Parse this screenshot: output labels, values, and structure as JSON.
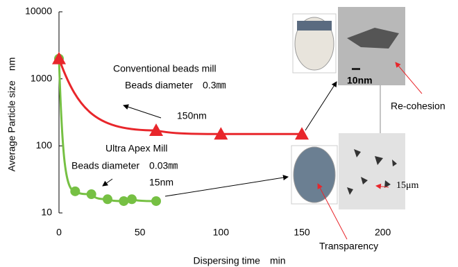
{
  "chart_data": {
    "type": "line",
    "y_label": "Average Particle size　nm",
    "x_label": "Dispersing time　min",
    "log_y": true,
    "xlim": [
      0,
      240
    ],
    "xticks": [
      0,
      50,
      100,
      150,
      200
    ],
    "ylim": [
      10,
      10000
    ],
    "yticks": [
      10,
      100,
      1000,
      10000
    ],
    "series": [
      {
        "name": "Conventional beads mill",
        "color": "#e8262b",
        "marker": "triangle",
        "x": [
          0,
          60,
          100,
          150
        ],
        "values": [
          2000,
          170,
          150,
          150
        ]
      },
      {
        "name": "Ultra Apex Mill",
        "color": "#76c043",
        "marker": "circle",
        "x": [
          0,
          10,
          20,
          30,
          40,
          45,
          60
        ],
        "values": [
          2000,
          21,
          19,
          16,
          15,
          16,
          15
        ]
      }
    ],
    "annotations": [
      "Conventional beads mill",
      "Beads diameter　0.3㎜",
      "150nm",
      "Ultra Apex Mill",
      "Beads diameter　0.03㎜",
      "15nm",
      "10nm",
      "Re-cohesion",
      "15μm",
      "Transparency"
    ]
  }
}
